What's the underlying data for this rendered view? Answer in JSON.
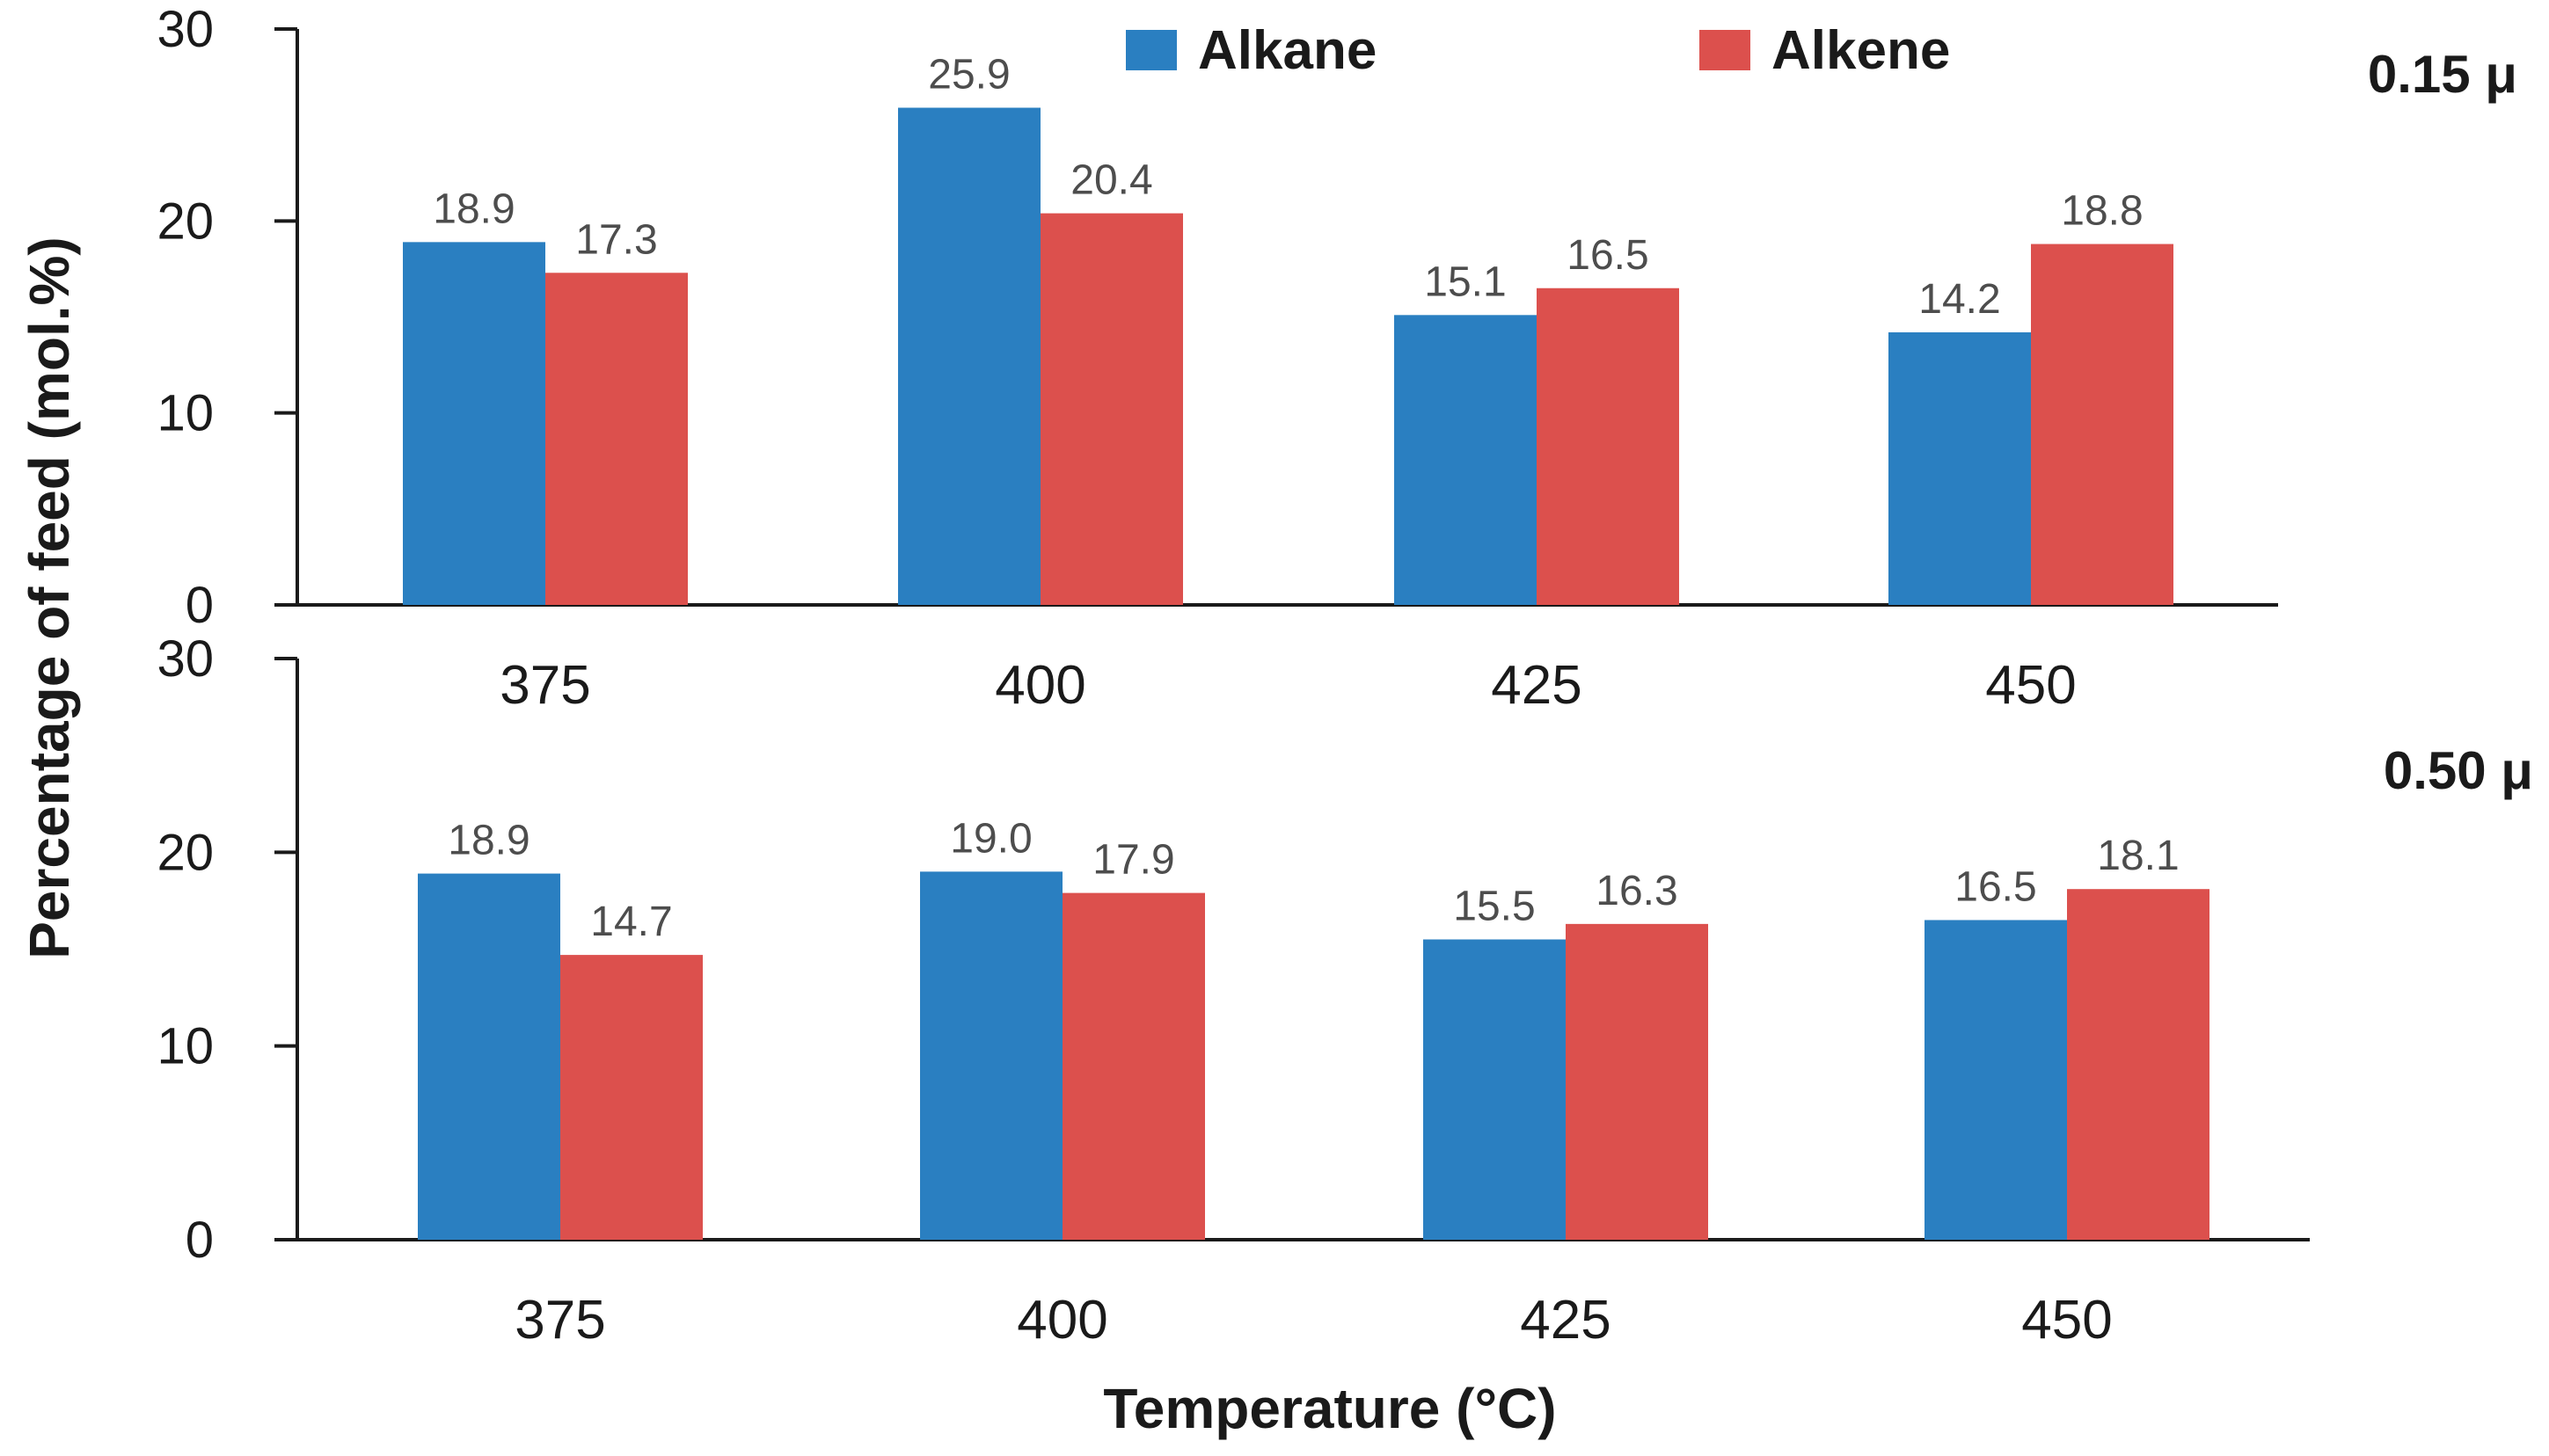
{
  "chart_data": [
    {
      "type": "bar",
      "panel_label": "0.15 μ",
      "categories": [
        "375",
        "400",
        "425",
        "450"
      ],
      "series": [
        {
          "name": "Alkane",
          "color": "#2a7fc1",
          "values": [
            18.9,
            25.9,
            15.1,
            14.2
          ]
        },
        {
          "name": "Alkene",
          "color": "#dc504d",
          "values": [
            17.3,
            20.4,
            16.5,
            18.8
          ]
        }
      ],
      "data_labels": {
        "Alkane": [
          "18.9",
          "25.9",
          "15.1",
          "14.2"
        ],
        "Alkene": [
          "17.3",
          "20.4",
          "16.5",
          "18.8"
        ]
      },
      "ylim": [
        0,
        30
      ],
      "yticks": [
        "0",
        "10",
        "20",
        "30"
      ],
      "ytick_values": [
        0,
        10,
        20,
        30
      ]
    },
    {
      "type": "bar",
      "panel_label": "0.50 μ",
      "categories": [
        "375",
        "400",
        "425",
        "450"
      ],
      "series": [
        {
          "name": "Alkane",
          "color": "#2a7fc1",
          "values": [
            18.9,
            19.0,
            15.5,
            16.5
          ]
        },
        {
          "name": "Alkene",
          "color": "#dc504d",
          "values": [
            14.7,
            17.9,
            16.3,
            18.1
          ]
        }
      ],
      "data_labels": {
        "Alkane": [
          "18.9",
          "19.0",
          "15.5",
          "16.5"
        ],
        "Alkene": [
          "14.7",
          "17.9",
          "16.3",
          "18.1"
        ]
      },
      "ylim": [
        0,
        30
      ],
      "yticks": [
        "0",
        "10",
        "20",
        "30"
      ],
      "ytick_values": [
        0,
        10,
        20,
        30
      ]
    }
  ],
  "legend": [
    {
      "name": "Alkane",
      "color": "#2a7fc1"
    },
    {
      "name": "Alkene",
      "color": "#dc504d"
    }
  ],
  "xlabel": "Temperature (°C)",
  "ylabel": "Percentage of feed (mol.%)",
  "axis_color": "#1a1a1a"
}
